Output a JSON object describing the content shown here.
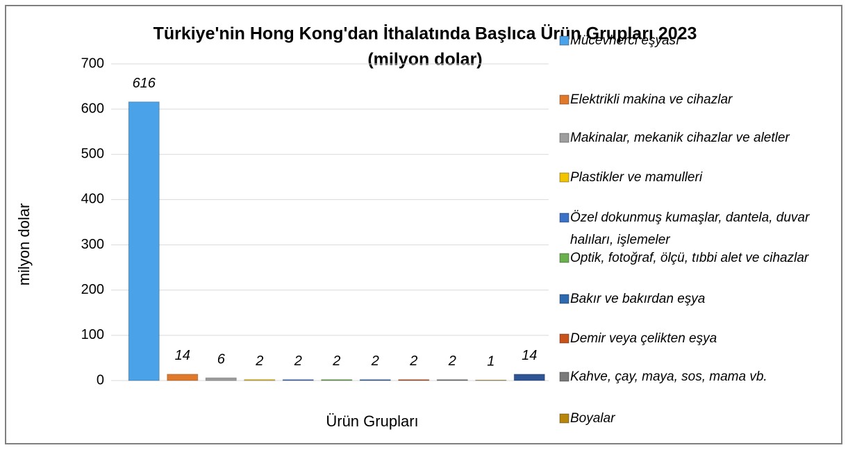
{
  "chart_data": {
    "type": "bar",
    "title": "Türkiye'nin Hong Kong'dan İthalatında Başlıca Ürün Grupları 2023",
    "subtitle": "(milyon dolar)",
    "y_axis_label": "milyon dolar",
    "x_axis_label": "Ürün Grupları",
    "categories": [
      "Mücevherci eşyası",
      "Elektrikli makina ve cihazlar",
      "Makinalar, mekanik cihazlar ve aletler",
      "Plastikler ve mamulleri",
      "Özel dokunmuş kumaşlar, dantela, duvar halıları, işlemeler",
      "Optik, fotoğraf, ölçü, tıbbi alet ve cihazlar",
      "Bakır ve bakırdan eşya",
      "Demir veya çelikten eşya",
      "Kahve, çay, maya, sos, mama vb.",
      "Boyalar",
      null
    ],
    "values": [
      616,
      14,
      6,
      2,
      2,
      2,
      2,
      2,
      2,
      1,
      14
    ],
    "colors": [
      "#4aa3e8",
      "#e07a2a",
      "#9e9e9e",
      "#f2c400",
      "#3a72c8",
      "#6ab04c",
      "#2e6ab0",
      "#c8541c",
      "#7a7a7a",
      "#b8860b",
      "#2f5597"
    ],
    "ylim": [
      0,
      700
    ],
    "yticks": [
      0,
      100,
      200,
      300,
      400,
      500,
      600,
      700
    ],
    "grid": true,
    "legend": "right"
  }
}
